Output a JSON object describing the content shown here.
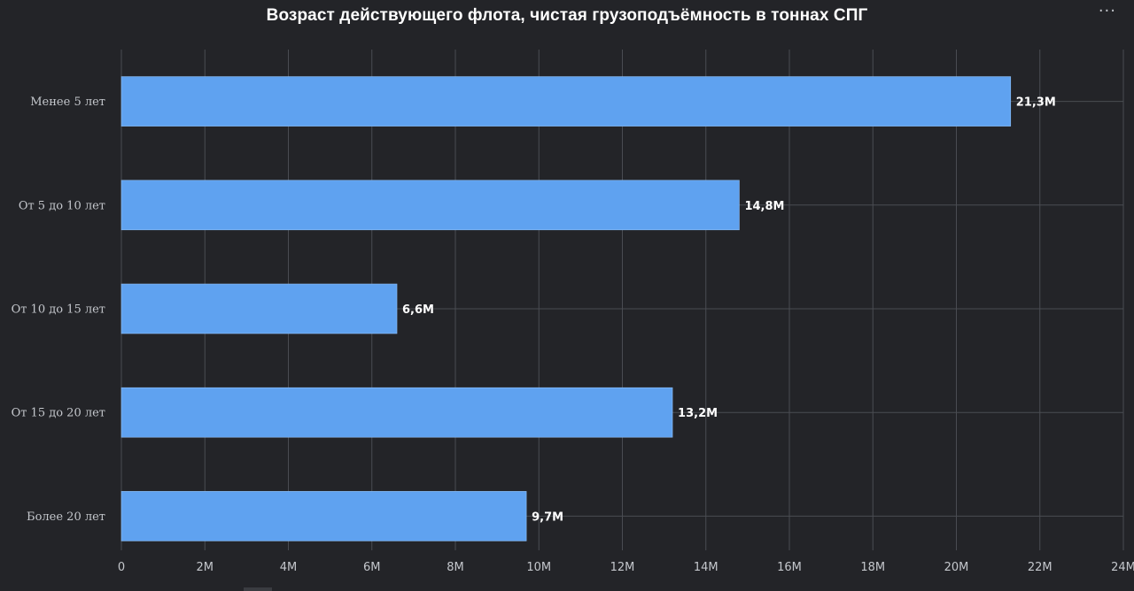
{
  "header": {
    "title": "Возраст действующего флота, чистая грузоподъёмность в тоннах СПГ",
    "menu_label": "···"
  },
  "colors": {
    "background": "#232428",
    "bar": "#5fa2f0",
    "grid": "#4a4c52"
  },
  "chart_data": {
    "type": "bar",
    "orientation": "horizontal",
    "title": "Возраст действующего флота, чистая грузоподъёмность в тоннах СПГ",
    "categories": [
      "Менее 5 лет",
      "От 5 до 10 лет",
      "От 10 до 15 лет",
      "От 15 до 20 лет",
      "Более 20 лет"
    ],
    "values": [
      21300000,
      14800000,
      6600000,
      13200000,
      9700000
    ],
    "data_labels": [
      "21,3M",
      "14,8M",
      "6,6M",
      "13,2M",
      "9,7M"
    ],
    "xlim": [
      0,
      24000000
    ],
    "x_ticks": [
      0,
      2000000,
      4000000,
      6000000,
      8000000,
      10000000,
      12000000,
      14000000,
      16000000,
      18000000,
      20000000,
      22000000,
      24000000
    ],
    "x_tick_labels": [
      "0",
      "2M",
      "4M",
      "6M",
      "8M",
      "10M",
      "12M",
      "14M",
      "16M",
      "18M",
      "20M",
      "22M",
      "24M"
    ],
    "grid": true,
    "xlabel": "",
    "ylabel": ""
  }
}
